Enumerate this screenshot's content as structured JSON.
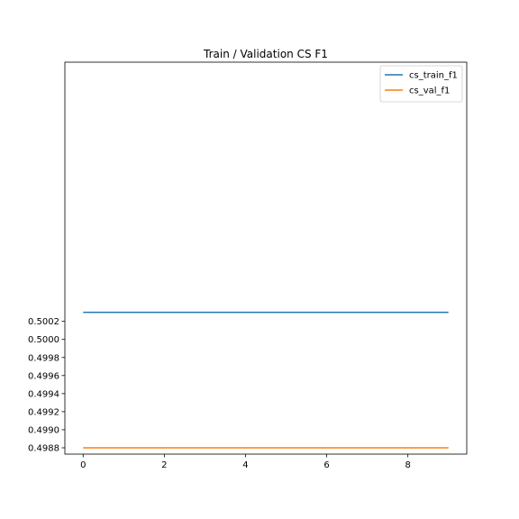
{
  "chart_data": {
    "type": "line",
    "title": "Train / Validation CS F1",
    "xlabel": "",
    "ylabel": "",
    "x": [
      0,
      1,
      2,
      3,
      4,
      5,
      6,
      7,
      8,
      9
    ],
    "xlim": [
      -0.45,
      9.45
    ],
    "ylim": [
      0.49873,
      0.50307
    ],
    "xticks": [
      0,
      2,
      4,
      6,
      8
    ],
    "xtick_labels": [
      "0",
      "2",
      "4",
      "6",
      "8"
    ],
    "yticks": [
      0.4988,
      0.499,
      0.4992,
      0.4994,
      0.4996,
      0.4998,
      0.5,
      0.5002
    ],
    "ytick_labels": [
      "0.4988",
      "0.4990",
      "0.4992",
      "0.4994",
      "0.4996",
      "0.4998",
      "0.5000",
      "0.5002"
    ],
    "grid": false,
    "legend": {
      "placement": "upper right"
    },
    "series": [
      {
        "name": "cs_train_f1",
        "color": "#1f77b4",
        "values": [
          0.5003,
          0.5003,
          0.5003,
          0.5003,
          0.5003,
          0.5003,
          0.5003,
          0.5003,
          0.5003,
          0.5003
        ]
      },
      {
        "name": "cs_val_f1",
        "color": "#ff7f0e",
        "values": [
          0.4988,
          0.4988,
          0.4988,
          0.4988,
          0.4988,
          0.4988,
          0.4988,
          0.4988,
          0.4988,
          0.4988
        ]
      }
    ]
  }
}
